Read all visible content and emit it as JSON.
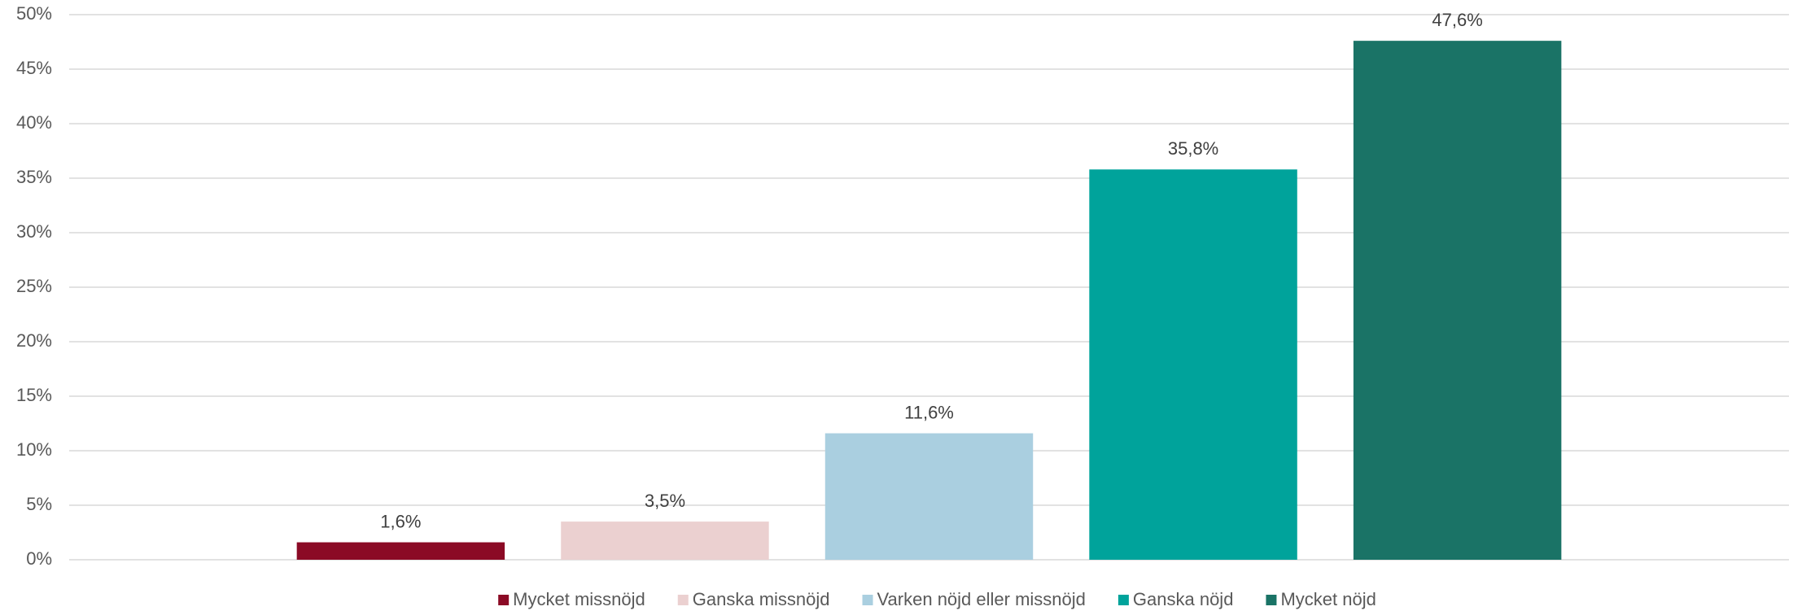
{
  "chart_data": {
    "type": "bar",
    "categories": [
      null
    ],
    "series": [
      {
        "name": "Mycket missnöjd",
        "color": "#8b0a25",
        "values": [
          1.6
        ],
        "value_labels": [
          "1,6%"
        ]
      },
      {
        "name": "Ganska missnöjd",
        "color": "#ebd0d0",
        "values": [
          3.5
        ],
        "value_labels": [
          "3,5%"
        ]
      },
      {
        "name": "Varken nöjd eller missnöjd",
        "color": "#aacfe0",
        "values": [
          11.6
        ],
        "value_labels": [
          "11,6%"
        ]
      },
      {
        "name": "Ganska nöjd",
        "color": "#00a39b",
        "values": [
          35.8
        ],
        "value_labels": [
          "35,8%"
        ]
      },
      {
        "name": "Mycket nöjd",
        "color": "#1a7366",
        "values": [
          47.6
        ],
        "value_labels": [
          "47,6%"
        ]
      }
    ],
    "ylim": [
      0,
      50
    ],
    "yticks": [
      {
        "value": 0,
        "label": "0%"
      },
      {
        "value": 5,
        "label": "5%"
      },
      {
        "value": 10,
        "label": "10%"
      },
      {
        "value": 15,
        "label": "15%"
      },
      {
        "value": 20,
        "label": "20%"
      },
      {
        "value": 25,
        "label": "25%"
      },
      {
        "value": 30,
        "label": "30%"
      },
      {
        "value": 35,
        "label": "35%"
      },
      {
        "value": 40,
        "label": "40%"
      },
      {
        "value": 45,
        "label": "45%"
      },
      {
        "value": 50,
        "label": "50%"
      }
    ],
    "grid": true,
    "legend": "bottom"
  }
}
